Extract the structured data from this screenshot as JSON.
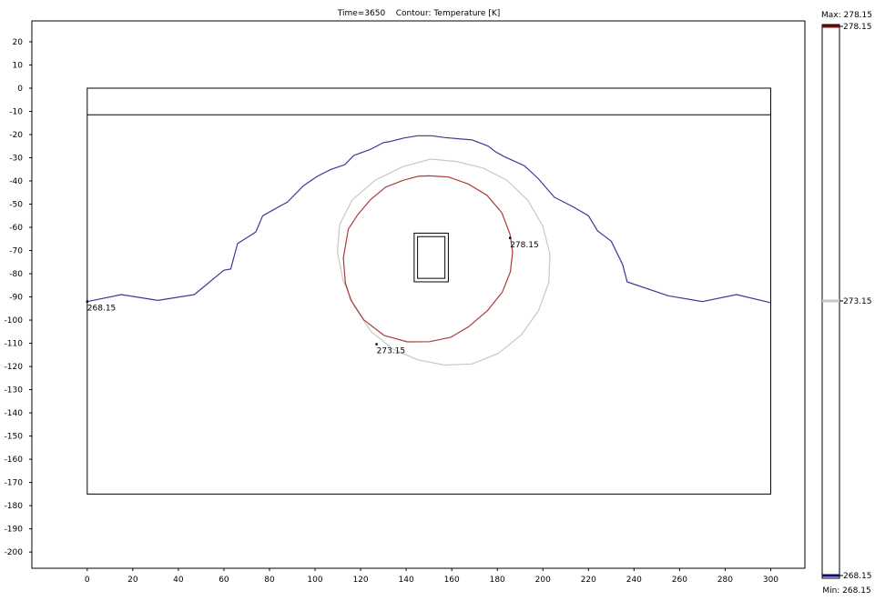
{
  "header": {
    "time_label": "Time=3650",
    "contour_label": "Contour: Temperature [K]"
  },
  "chart_data": {
    "type": "contour",
    "title": "Time=3650    Contour: Temperature [K]",
    "xlabel": "",
    "ylabel": "",
    "xlim": [
      -24.3,
      315
    ],
    "ylim": [
      -207,
      29
    ],
    "x_ticks": [
      0,
      20,
      40,
      60,
      80,
      100,
      120,
      140,
      160,
      180,
      200,
      220,
      240,
      260,
      280,
      300
    ],
    "y_ticks": [
      20,
      10,
      0,
      -10,
      -20,
      -30,
      -40,
      -50,
      -60,
      -70,
      -80,
      -90,
      -100,
      -110,
      -120,
      -130,
      -140,
      -150,
      -160,
      -170,
      -180,
      -190,
      -200
    ],
    "grid": false,
    "geometry": {
      "outer_domain": {
        "x": [
          0,
          300
        ],
        "y": [
          -175,
          0
        ]
      },
      "surface_layer_line_y": -11.5,
      "heat_source_outer": {
        "x": [
          143.5,
          158.5
        ],
        "y": [
          -83.5,
          -62.5
        ]
      },
      "heat_source_inner": {
        "x": [
          145,
          157
        ],
        "y": [
          -82,
          -64
        ]
      }
    },
    "series": [
      {
        "level": 268.15,
        "color": "#3a3a96",
        "points": [
          [
            0,
            -92
          ],
          [
            15,
            -89
          ],
          [
            31,
            -91.5
          ],
          [
            47,
            -89
          ],
          [
            60,
            -78.5
          ],
          [
            63,
            -78
          ],
          [
            66,
            -67
          ],
          [
            74,
            -62
          ],
          [
            77,
            -55
          ],
          [
            88,
            -49
          ],
          [
            95,
            -42
          ],
          [
            101,
            -38
          ],
          [
            107,
            -35
          ],
          [
            113,
            -33
          ],
          [
            117,
            -29
          ],
          [
            124,
            -26.5
          ],
          [
            130,
            -23.5
          ],
          [
            133,
            -23
          ],
          [
            139,
            -21.5
          ],
          [
            145,
            -20.5
          ],
          [
            151,
            -20.5
          ],
          [
            157,
            -21.3
          ],
          [
            163,
            -21.8
          ],
          [
            169,
            -22.3
          ],
          [
            176,
            -25
          ],
          [
            179,
            -27.3
          ],
          [
            183,
            -29.5
          ],
          [
            192,
            -33.5
          ],
          [
            198,
            -39
          ],
          [
            205,
            -47
          ],
          [
            213,
            -51
          ],
          [
            220,
            -55
          ],
          [
            224,
            -61.5
          ],
          [
            230,
            -66
          ],
          [
            235,
            -76
          ],
          [
            237,
            -83.5
          ],
          [
            255,
            -89.5
          ],
          [
            270,
            -92
          ],
          [
            285,
            -89
          ],
          [
            300,
            -92.5
          ]
        ]
      },
      {
        "level": 273.15,
        "color": "#c8c8c8",
        "points": [
          [
            150.7,
            -30.6
          ],
          [
            162.1,
            -31.6
          ],
          [
            173.6,
            -34.4
          ],
          [
            184.4,
            -39.8
          ],
          [
            193.4,
            -48.3
          ],
          [
            199.9,
            -59.4
          ],
          [
            203.1,
            -71.4
          ],
          [
            202.6,
            -83.7
          ],
          [
            198.1,
            -95.9
          ],
          [
            190.5,
            -106.4
          ],
          [
            180.3,
            -114.4
          ],
          [
            168.8,
            -118.9
          ],
          [
            156.8,
            -119.4
          ],
          [
            145.0,
            -117.1
          ],
          [
            134.1,
            -112.5
          ],
          [
            124.5,
            -104.8
          ],
          [
            117.3,
            -94.1
          ],
          [
            112.3,
            -82.8
          ],
          [
            109.8,
            -70.6
          ],
          [
            110.8,
            -58.9
          ],
          [
            116.3,
            -48.2
          ],
          [
            126.4,
            -39.7
          ],
          [
            138.6,
            -33.8
          ],
          [
            150.7,
            -30.6
          ]
        ]
      },
      {
        "level": 278.15,
        "color": "#a83c3c",
        "points": [
          [
            150,
            -37.8
          ],
          [
            158.6,
            -38.3
          ],
          [
            167.2,
            -41.3
          ],
          [
            175.5,
            -46.2
          ],
          [
            182,
            -53.7
          ],
          [
            185.6,
            -63.1
          ],
          [
            186.7,
            -70.7
          ],
          [
            185.7,
            -79.2
          ],
          [
            182.2,
            -87.9
          ],
          [
            175.7,
            -95.9
          ],
          [
            167.5,
            -102.8
          ],
          [
            159.6,
            -107.4
          ],
          [
            150.2,
            -109.3
          ],
          [
            140.5,
            -109.4
          ],
          [
            130.3,
            -106.6
          ],
          [
            121.4,
            -99.9
          ],
          [
            115.7,
            -91.4
          ],
          [
            113.3,
            -83.9
          ],
          [
            112.4,
            -73.2
          ],
          [
            114.6,
            -60.7
          ],
          [
            118.7,
            -54.6
          ],
          [
            124.1,
            -48.3
          ],
          [
            130.9,
            -42.7
          ],
          [
            138.8,
            -39.7
          ],
          [
            145.2,
            -38
          ],
          [
            150,
            -37.8
          ]
        ]
      }
    ],
    "annotations": [
      {
        "label": "268.15",
        "x": 0,
        "y": -92
      },
      {
        "label": "278.15",
        "x": 185.6,
        "y": -64.6
      },
      {
        "label": "273.15",
        "x": 127,
        "y": -110.4
      }
    ],
    "colorbar": {
      "max_label": "Max: 278.15",
      "min_label": "Min: 268.15",
      "levels": [
        {
          "value": 278.15,
          "label": "278.15",
          "color": "#7a0a0a"
        },
        {
          "value": 273.15,
          "label": "273.15",
          "color": "#c8c8c8"
        },
        {
          "value": 268.15,
          "label": "268.15",
          "color": "#0a0a7a"
        }
      ]
    }
  }
}
